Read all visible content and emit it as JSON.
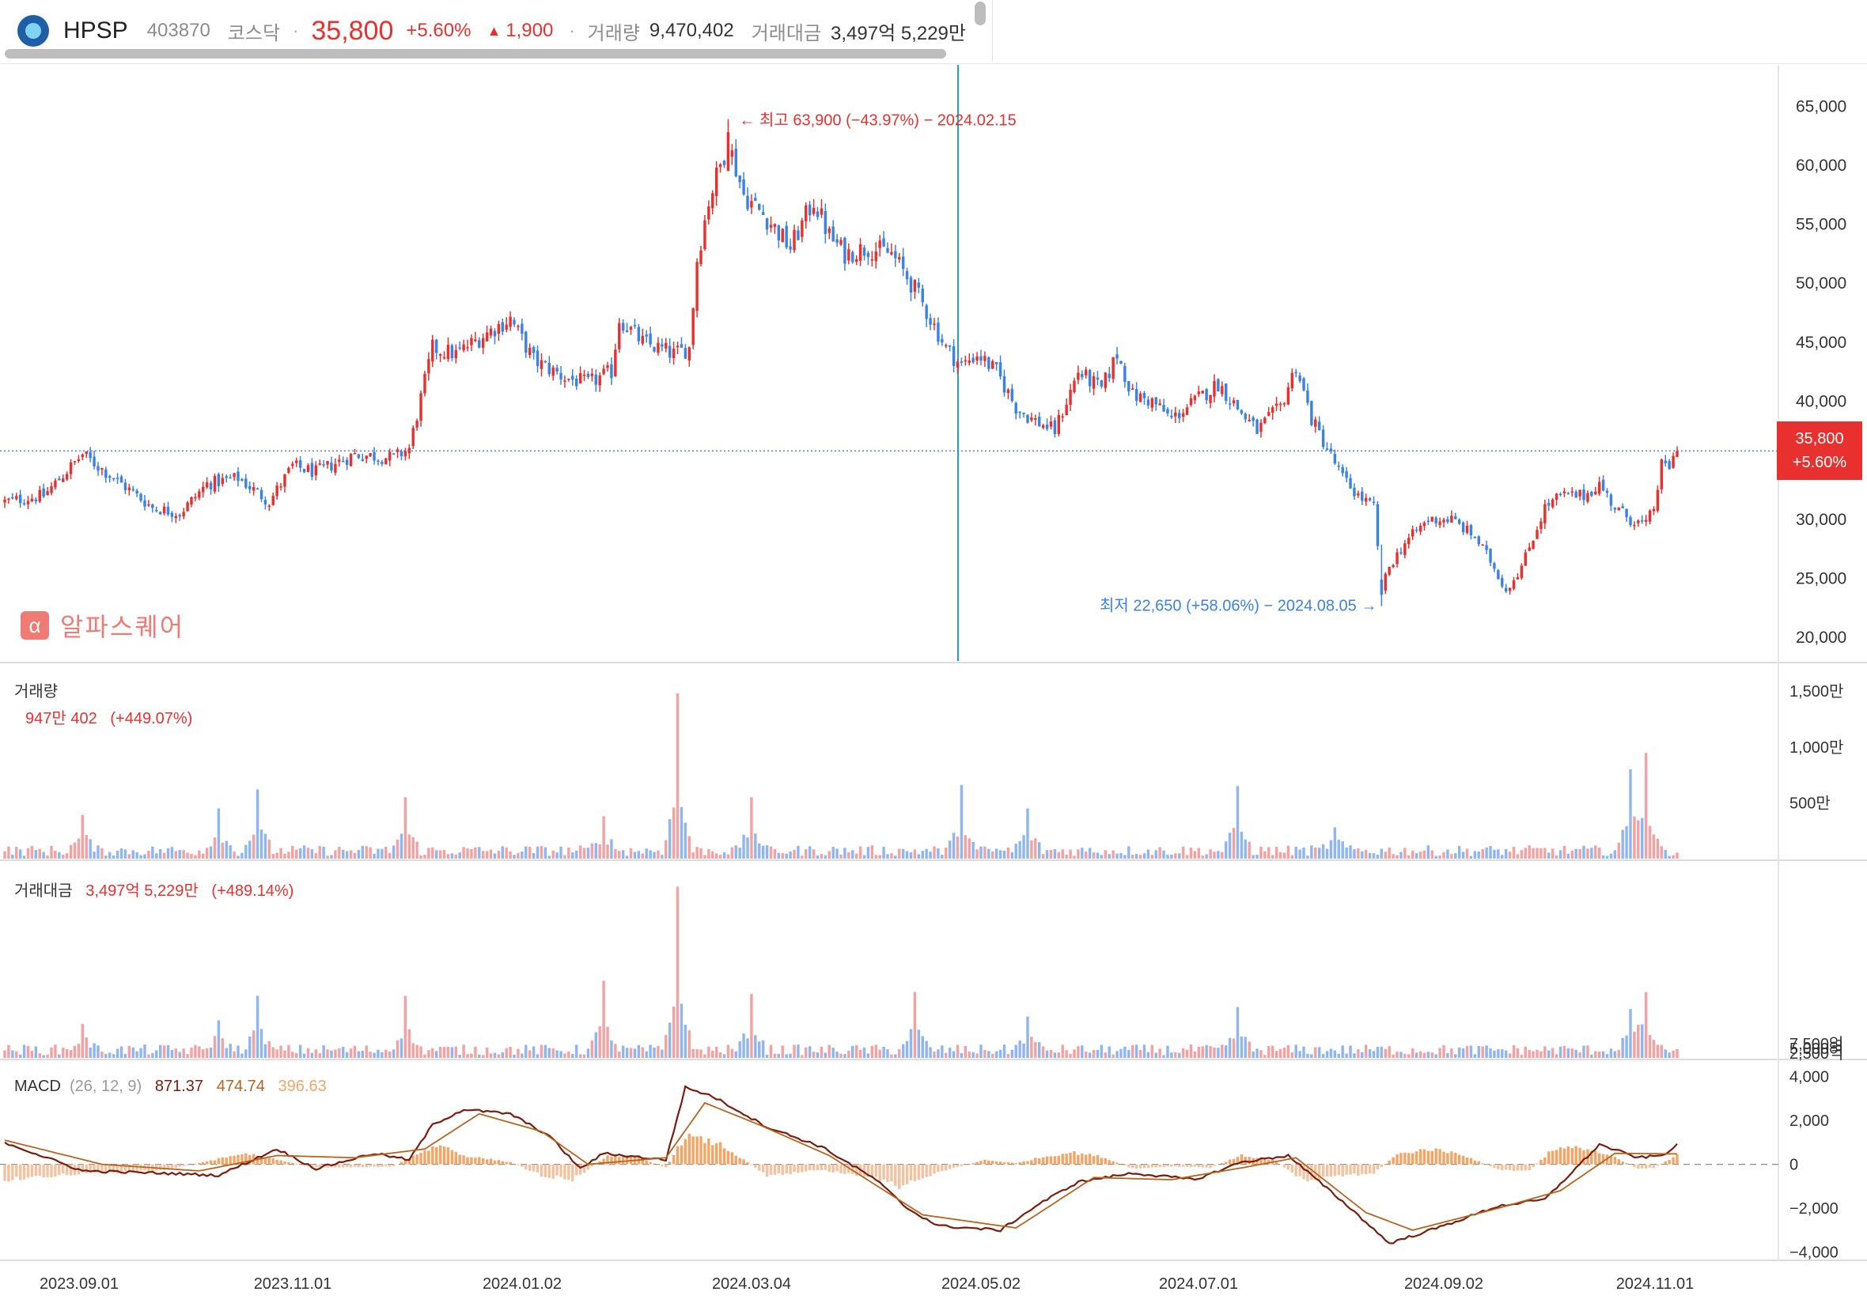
{
  "header": {
    "symbol": "HPSP",
    "code": "403870",
    "market": "코스닥",
    "price": "35,800",
    "change_pct": "+5.60%",
    "change_arrow": "▲",
    "change_amt": "1,900",
    "volume_label": "거래량",
    "volume_value": "9,470,402",
    "turnover_label": "거래대금",
    "turnover_value": "3,497억 5,229만"
  },
  "watermark": {
    "text": "알파스퀘어",
    "logo_char": "α"
  },
  "price_tag": {
    "price": "35,800",
    "pct": "+5.60%"
  },
  "colors": {
    "up": "#e8312f",
    "down": "#3b82e6",
    "up_bar": "#f4a1a1",
    "down_bar": "#8fb6f2",
    "macd": "#7a1c0e",
    "signal": "#b5651d",
    "hist": "#f3b07a",
    "crosshair": "#2a9fb5"
  },
  "panels": {
    "volume": {
      "title": "거래량",
      "value": "947만 402",
      "pct": "(+449.07%)"
    },
    "turnover": {
      "title": "거래대금",
      "value": "3,497억 5,229만",
      "pct": "(+489.14%)"
    },
    "macd": {
      "title": "MACD",
      "params": "(26, 12, 9)",
      "macd": "871.37",
      "signal": "474.74",
      "hist": "396.63"
    }
  },
  "chart_data": [
    {
      "type": "candlestick",
      "title": "",
      "yaxis_ticks": [
        "65,000",
        "60,000",
        "55,000",
        "50,000",
        "45,000",
        "40,000",
        "35,000",
        "30,000",
        "25,000",
        "20,000"
      ],
      "ylim": [
        18000,
        68500
      ],
      "current_price": 35800,
      "annotations": {
        "high": "최고 63,900 (−43.97%) − 2024.02.15",
        "low": "최저 22,650 (+58.06%) − 2024.08.05"
      },
      "xaxis_ticks": [
        "2023.09.01",
        "2023.11.01",
        "2024.01.02",
        "2024.03.04",
        "2024.05.02",
        "2024.07.01",
        "2024.09.02",
        "2024.11.01"
      ],
      "close_keypoints": [
        [
          0,
          31500
        ],
        [
          10,
          32000
        ],
        [
          20,
          35500
        ],
        [
          28,
          33500
        ],
        [
          38,
          31000
        ],
        [
          45,
          30500
        ],
        [
          52,
          33000
        ],
        [
          60,
          33500
        ],
        [
          68,
          31500
        ],
        [
          74,
          34500
        ],
        [
          80,
          34000
        ],
        [
          90,
          35500
        ],
        [
          100,
          35200
        ],
        [
          104,
          36000
        ],
        [
          110,
          44500
        ],
        [
          116,
          44000
        ],
        [
          125,
          46000
        ],
        [
          130,
          47000
        ],
        [
          136,
          43500
        ],
        [
          144,
          42000
        ],
        [
          150,
          41500
        ],
        [
          156,
          42500
        ],
        [
          158,
          47000
        ],
        [
          164,
          45000
        ],
        [
          172,
          44000
        ],
        [
          176,
          44500
        ],
        [
          178,
          52000
        ],
        [
          181,
          57000
        ],
        [
          184,
          60000
        ],
        [
          186,
          62000
        ],
        [
          190,
          57500
        ],
        [
          196,
          55500
        ],
        [
          202,
          53000
        ],
        [
          208,
          57000
        ],
        [
          212,
          54000
        ],
        [
          216,
          52500
        ],
        [
          222,
          53000
        ],
        [
          228,
          52500
        ],
        [
          234,
          49500
        ],
        [
          238,
          47000
        ],
        [
          242,
          44500
        ],
        [
          246,
          43000
        ],
        [
          250,
          44000
        ],
        [
          255,
          42500
        ],
        [
          260,
          39500
        ],
        [
          264,
          38500
        ],
        [
          270,
          37500
        ],
        [
          276,
          42500
        ],
        [
          282,
          41000
        ],
        [
          286,
          44000
        ],
        [
          290,
          40500
        ],
        [
          295,
          40000
        ],
        [
          300,
          38500
        ],
        [
          306,
          40000
        ],
        [
          312,
          41500
        ],
        [
          318,
          39000
        ],
        [
          322,
          37500
        ],
        [
          328,
          39500
        ],
        [
          332,
          43000
        ],
        [
          336,
          38500
        ],
        [
          340,
          36000
        ],
        [
          344,
          33500
        ],
        [
          348,
          32000
        ],
        [
          352,
          31000
        ],
        [
          354,
          24000
        ],
        [
          356,
          26000
        ],
        [
          360,
          28000
        ],
        [
          366,
          30000
        ],
        [
          372,
          30000
        ],
        [
          378,
          28500
        ],
        [
          382,
          26500
        ],
        [
          386,
          24000
        ],
        [
          390,
          26000
        ],
        [
          396,
          31000
        ],
        [
          400,
          32000
        ],
        [
          406,
          32000
        ],
        [
          410,
          33000
        ],
        [
          414,
          31000
        ],
        [
          418,
          30000
        ],
        [
          422,
          29500
        ],
        [
          424,
          31000
        ],
        [
          426,
          34500
        ],
        [
          428,
          34500
        ],
        [
          430,
          35800
        ]
      ]
    },
    {
      "type": "bar",
      "title": "거래량",
      "yaxis_ticks": [
        "1,500만",
        "1,000만",
        "500만"
      ],
      "ylim": [
        0,
        16000000
      ],
      "spikes": [
        [
          20,
          3900000
        ],
        [
          55,
          4500000
        ],
        [
          65,
          6200000
        ],
        [
          103,
          5500000
        ],
        [
          154,
          3800000
        ],
        [
          173,
          14800000
        ],
        [
          192,
          5500000
        ],
        [
          246,
          6600000
        ],
        [
          263,
          4500000
        ],
        [
          317,
          6500000
        ],
        [
          342,
          2800000
        ],
        [
          418,
          8000000
        ],
        [
          422,
          9470402
        ]
      ]
    },
    {
      "type": "bar",
      "title": "거래대금",
      "yaxis_ticks": [
        "7,500억",
        "5,000억",
        "2,500억"
      ],
      "ylim": [
        0,
        9500000000000
      ],
      "spikes": [
        [
          20,
          1800000000000
        ],
        [
          55,
          2000000000000
        ],
        [
          65,
          3300000000000
        ],
        [
          103,
          3300000000000
        ],
        [
          154,
          4100000000000
        ],
        [
          173,
          9100000000000
        ],
        [
          192,
          3400000000000
        ],
        [
          234,
          3500000000000
        ],
        [
          263,
          2200000000000
        ],
        [
          317,
          2700000000000
        ],
        [
          418,
          2600000000000
        ],
        [
          422,
          3497522900000
        ]
      ]
    },
    {
      "type": "line",
      "title": "MACD",
      "yaxis_ticks": [
        "4,000",
        "2,000",
        "0",
        "−2,000",
        "−4,000"
      ],
      "ylim": [
        -4300,
        4200
      ],
      "series": [
        {
          "name": "MACD",
          "keypoints": [
            [
              0,
              1000
            ],
            [
              20,
              -300
            ],
            [
              40,
              -400
            ],
            [
              55,
              -500
            ],
            [
              70,
              700
            ],
            [
              80,
              -200
            ],
            [
              95,
              500
            ],
            [
              104,
              200
            ],
            [
              110,
              1800
            ],
            [
              118,
              2500
            ],
            [
              130,
              2300
            ],
            [
              140,
              1300
            ],
            [
              148,
              -200
            ],
            [
              154,
              500
            ],
            [
              170,
              200
            ],
            [
              175,
              3500
            ],
            [
              182,
              3100
            ],
            [
              196,
              1700
            ],
            [
              210,
              800
            ],
            [
              224,
              -700
            ],
            [
              232,
              -2000
            ],
            [
              240,
              -2800
            ],
            [
              256,
              -3000
            ],
            [
              266,
              -1800
            ],
            [
              276,
              -800
            ],
            [
              290,
              -400
            ],
            [
              306,
              -700
            ],
            [
              318,
              100
            ],
            [
              330,
              400
            ],
            [
              346,
              -2000
            ],
            [
              356,
              -3600
            ],
            [
              370,
              -2800
            ],
            [
              384,
              -1900
            ],
            [
              396,
              -1600
            ],
            [
              410,
              900
            ],
            [
              420,
              300
            ],
            [
              426,
              400
            ],
            [
              430,
              871
            ]
          ]
        },
        {
          "name": "Signal",
          "keypoints": [
            [
              0,
              1100
            ],
            [
              25,
              0
            ],
            [
              50,
              -300
            ],
            [
              70,
              400
            ],
            [
              90,
              300
            ],
            [
              108,
              700
            ],
            [
              122,
              2300
            ],
            [
              138,
              1500
            ],
            [
              150,
              0
            ],
            [
              170,
              300
            ],
            [
              180,
              2800
            ],
            [
              194,
              1800
            ],
            [
              212,
              400
            ],
            [
              236,
              -2300
            ],
            [
              260,
              -2900
            ],
            [
              280,
              -600
            ],
            [
              300,
              -700
            ],
            [
              320,
              -100
            ],
            [
              332,
              300
            ],
            [
              350,
              -2200
            ],
            [
              362,
              -3000
            ],
            [
              384,
              -2000
            ],
            [
              400,
              -1200
            ],
            [
              414,
              500
            ],
            [
              430,
              475
            ]
          ]
        }
      ],
      "histogram": [
        [
          0,
          -700
        ],
        [
          20,
          -400
        ],
        [
          40,
          -300
        ],
        [
          55,
          250
        ],
        [
          62,
          500
        ],
        [
          70,
          200
        ],
        [
          80,
          -150
        ],
        [
          100,
          -100
        ],
        [
          105,
          400
        ],
        [
          112,
          900
        ],
        [
          118,
          400
        ],
        [
          130,
          100
        ],
        [
          138,
          -500
        ],
        [
          146,
          -700
        ],
        [
          155,
          400
        ],
        [
          162,
          350
        ],
        [
          170,
          -150
        ],
        [
          175,
          1300
        ],
        [
          184,
          900
        ],
        [
          196,
          -500
        ],
        [
          210,
          -250
        ],
        [
          222,
          -550
        ],
        [
          230,
          -1000
        ],
        [
          240,
          -350
        ],
        [
          252,
          200
        ],
        [
          260,
          50
        ],
        [
          266,
          300
        ],
        [
          274,
          550
        ],
        [
          282,
          350
        ],
        [
          290,
          -200
        ],
        [
          300,
          -100
        ],
        [
          310,
          -150
        ],
        [
          318,
          400
        ],
        [
          326,
          200
        ],
        [
          334,
          -700
        ],
        [
          344,
          -500
        ],
        [
          352,
          -400
        ],
        [
          358,
          450
        ],
        [
          366,
          700
        ],
        [
          374,
          500
        ],
        [
          384,
          -250
        ],
        [
          392,
          -300
        ],
        [
          398,
          700
        ],
        [
          406,
          750
        ],
        [
          414,
          300
        ],
        [
          420,
          -200
        ],
        [
          424,
          -150
        ],
        [
          430,
          397
        ]
      ]
    }
  ]
}
